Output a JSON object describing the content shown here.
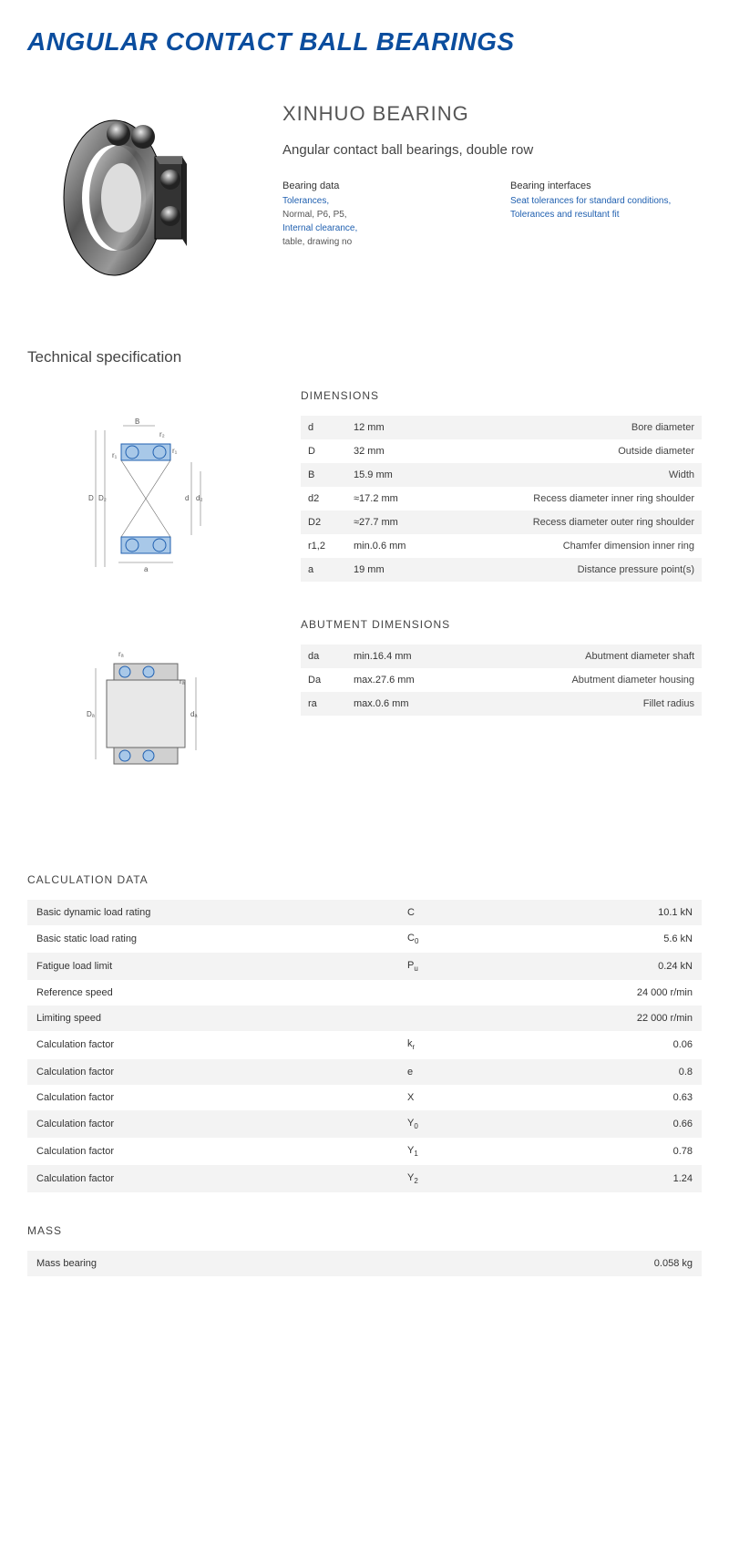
{
  "colors": {
    "brand_blue": "#0b4d9e",
    "link_blue": "#2060b0",
    "row_odd": "#f3f3f3",
    "row_even": "#ffffff",
    "text": "#333333",
    "text_muted": "#555555"
  },
  "main_title": "ANGULAR CONTACT BALL BEARINGS",
  "brand": "XINHUO BEARING",
  "subtitle": "Angular contact ball bearings, double row",
  "bearing_data": {
    "heading": "Bearing data",
    "links": [
      {
        "label": "Tolerances,",
        "type": "link"
      },
      {
        "label": "Normal, P6, P5,",
        "type": "text"
      },
      {
        "label": "Internal clearance,",
        "type": "link"
      },
      {
        "label": "table, drawing no",
        "type": "text"
      }
    ]
  },
  "bearing_interfaces": {
    "heading": "Bearing interfaces",
    "links": [
      {
        "label": "Seat tolerances for standard conditions,",
        "type": "link"
      },
      {
        "label": "Tolerances and resultant fit",
        "type": "link"
      }
    ]
  },
  "tech_spec_title": "Technical specification",
  "dimensions": {
    "heading": "DIMENSIONS",
    "rows": [
      {
        "sym": "d",
        "val": "12  mm",
        "desc": "Bore diameter"
      },
      {
        "sym": "D",
        "val": "32  mm",
        "desc": "Outside diameter"
      },
      {
        "sym": "B",
        "val": "15.9  mm",
        "desc": "Width"
      },
      {
        "sym": "d2",
        "val": "≈17.2 mm",
        "desc": "Recess diameter inner ring shoulder"
      },
      {
        "sym": "D2",
        "val": "≈27.7 mm",
        "desc": "Recess diameter outer ring shoulder"
      },
      {
        "sym": "r1,2",
        "val": "min.0.6 mm",
        "desc": "Chamfer dimension inner ring"
      },
      {
        "sym": "a",
        "val": "19  mm",
        "desc": "Distance pressure point(s)"
      }
    ]
  },
  "abutment": {
    "heading": "ABUTMENT DIMENSIONS",
    "rows": [
      {
        "sym": "da",
        "val": "min.16.4 mm",
        "desc": "Abutment diameter shaft"
      },
      {
        "sym": "Da",
        "val": "max.27.6 mm",
        "desc": "Abutment diameter housing"
      },
      {
        "sym": "ra",
        "val": "max.0.6 mm",
        "desc": "Fillet radius"
      }
    ]
  },
  "calculation": {
    "heading": "CALCULATION DATA",
    "rows": [
      {
        "label": "Basic dynamic load rating",
        "sym": "C",
        "val": "10.1  kN"
      },
      {
        "label": "Basic static load rating",
        "sym": "C",
        "sub": "0",
        "val": "5.6  kN"
      },
      {
        "label": "Fatigue load limit",
        "sym": "P",
        "sub": "u",
        "val": "0.24  kN"
      },
      {
        "label": "Reference speed",
        "sym": "",
        "val": "24 000  r/min"
      },
      {
        "label": "Limiting speed",
        "sym": "",
        "val": "22 000  r/min"
      },
      {
        "label": "Calculation factor",
        "sym": "k",
        "sub": "r",
        "val": "0.06"
      },
      {
        "label": "Calculation factor",
        "sym": "e",
        "val": "0.8"
      },
      {
        "label": "Calculation factor",
        "sym": "X",
        "val": "0.63"
      },
      {
        "label": "Calculation factor",
        "sym": "Y",
        "sub": "0",
        "val": "0.66"
      },
      {
        "label": "Calculation factor",
        "sym": "Y",
        "sub": "1",
        "val": "0.78"
      },
      {
        "label": "Calculation factor",
        "sym": "Y",
        "sub": "2",
        "val": "1.24"
      }
    ]
  },
  "mass": {
    "heading": "MASS",
    "rows": [
      {
        "label": "Mass bearing",
        "sym": "",
        "val": "0.058  kg"
      }
    ]
  },
  "diagrams": {
    "dim_diagram_labels": {
      "B": "B",
      "r1": "r₁",
      "r2": "r₂",
      "D": "D",
      "D2": "D₂",
      "d": "d",
      "d2": "d₂",
      "a": "a"
    },
    "abut_diagram_labels": {
      "ra": "rₐ",
      "Da": "Dₐ",
      "da": "dₐ"
    }
  }
}
